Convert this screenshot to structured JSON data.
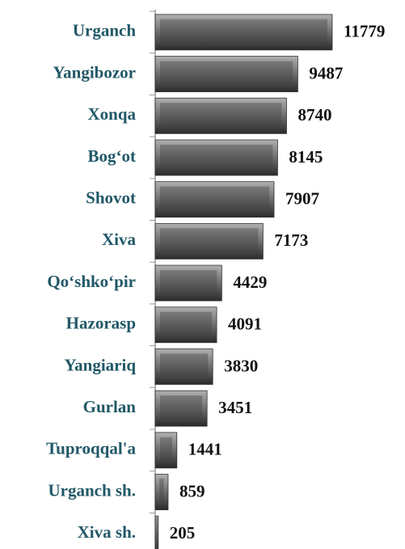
{
  "chart_data": {
    "type": "bar",
    "orientation": "horizontal",
    "categories": [
      "Urganch",
      "Yangibozor",
      "Xonqa",
      "Bog‘ot",
      "Shovot",
      "Xiva",
      "Qo‘shko‘pir",
      "Hazorasp",
      "Yangiariq",
      "Gurlan",
      "Tuproqqal'a",
      "Urganch sh.",
      "Xiva sh."
    ],
    "values": [
      11779,
      9487,
      8740,
      8145,
      7907,
      7173,
      4429,
      4091,
      3830,
      3451,
      1441,
      859,
      205
    ],
    "color": "#5a5a5a"
  }
}
